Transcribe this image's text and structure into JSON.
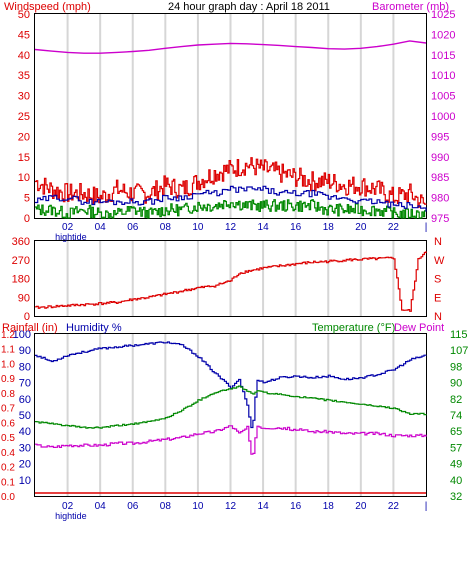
{
  "title": "24 hour graph day : April 18 2011",
  "colors": {
    "wind": "#dd0000",
    "wind_avg": "#0000aa",
    "wind_low": "#008800",
    "barometer": "#cc00cc",
    "direction": "#dd0000",
    "humidity": "#0000aa",
    "temperature": "#008800",
    "dewpoint": "#cc00cc",
    "rainfall": "#dd0000",
    "grid": "#d6d6d6",
    "frame": "#000000"
  },
  "chart_data": [
    {
      "type": "line",
      "id": "wind-baro",
      "left_axis_label": "Windspeed (mph)",
      "right_axis_label": "Barometer (mb)",
      "y_left_ticks": [
        "0",
        "5",
        "10",
        "15",
        "20",
        "25",
        "30",
        "35",
        "40",
        "45",
        "50"
      ],
      "y_right_ticks": [
        "975",
        "980",
        "985",
        "990",
        "995",
        "1000",
        "1005",
        "1010",
        "1015",
        "1020",
        "1025"
      ],
      "ylim_left": [
        0,
        50
      ],
      "ylim_right": [
        975,
        1025
      ],
      "x_ticks": [
        "02",
        "04",
        "06",
        "08",
        "10",
        "12",
        "14",
        "16",
        "18",
        "20",
        "22",
        "|"
      ],
      "x_sublabel": "hightide",
      "hours": [
        0,
        1,
        2,
        3,
        4,
        5,
        6,
        7,
        8,
        9,
        10,
        11,
        12,
        13,
        14,
        15,
        16,
        17,
        18,
        19,
        20,
        21,
        22,
        23,
        24
      ],
      "series": [
        {
          "key": "gust",
          "values": [
            9,
            7,
            6,
            6,
            5,
            7,
            6,
            6,
            8,
            7,
            9,
            11,
            12,
            13,
            12,
            11,
            10,
            9,
            9,
            8,
            8,
            7,
            5,
            6,
            3
          ]
        },
        {
          "key": "avg",
          "values": [
            4,
            5,
            5,
            4,
            4,
            4,
            4,
            4,
            5,
            5,
            6,
            6,
            7,
            7,
            7,
            6,
            6,
            6,
            5,
            5,
            4,
            4,
            3,
            3,
            2
          ]
        },
        {
          "key": "low",
          "values": [
            2,
            2,
            1,
            2,
            1,
            1,
            2,
            1,
            2,
            2,
            3,
            3,
            4,
            3,
            3,
            3,
            3,
            3,
            2,
            2,
            2,
            2,
            1,
            1,
            1
          ]
        },
        {
          "key": "barometer",
          "values": [
            1016.3,
            1015.9,
            1015.6,
            1015.4,
            1015.4,
            1015.6,
            1015.8,
            1016.1,
            1016.6,
            1017.0,
            1017.4,
            1017.6,
            1017.8,
            1017.7,
            1017.5,
            1017.3,
            1017.0,
            1016.8,
            1016.5,
            1016.4,
            1016.6,
            1017.0,
            1017.6,
            1018.4,
            1017.9
          ]
        }
      ]
    },
    {
      "type": "line",
      "id": "direction",
      "y_left_ticks": [
        "0",
        "90",
        "180",
        "270",
        "360"
      ],
      "y_right_ticks": [
        "N",
        "E",
        "S",
        "W",
        "N"
      ],
      "ylim": [
        0,
        360
      ],
      "hours": [
        0,
        1,
        2,
        3,
        4,
        5,
        6,
        7,
        8,
        9,
        10,
        11,
        12,
        12.5,
        13,
        14,
        15,
        16,
        17,
        18,
        19,
        20,
        21,
        22,
        22.5,
        23,
        23.5,
        24
      ],
      "values": [
        40,
        45,
        50,
        55,
        60,
        65,
        80,
        90,
        105,
        120,
        135,
        145,
        170,
        205,
        215,
        230,
        240,
        250,
        258,
        262,
        268,
        272,
        275,
        278,
        30,
        25,
        270,
        315
      ]
    },
    {
      "type": "line",
      "id": "hum-temp",
      "left_axis_label_1": "Rainfall (in)",
      "left_axis_label_2": "Humidity %",
      "right_axis_label_1": "Temperature (°F)",
      "right_axis_label_2": "Dew Point",
      "rain_ticks": [
        "0.0",
        "0.1",
        "0.2",
        "0.4",
        "0.5",
        "0.6",
        "0.7",
        "0.8",
        "0.9",
        "1.0",
        "1.1",
        "1.2"
      ],
      "humidity_ticks": [
        "10",
        "20",
        "30",
        "40",
        "50",
        "60",
        "70",
        "80",
        "90",
        "100"
      ],
      "temp_ticks": [
        "32",
        "40",
        "49",
        "57",
        "65",
        "74",
        "82",
        "90",
        "98",
        "107",
        "115"
      ],
      "ylim_humidity": [
        0,
        100
      ],
      "ylim_temp": [
        32,
        115
      ],
      "x_ticks": [
        "02",
        "04",
        "06",
        "08",
        "10",
        "12",
        "14",
        "16",
        "18",
        "20",
        "22",
        "|"
      ],
      "x_sublabel": "hightide",
      "hours": [
        0,
        1,
        2,
        3,
        4,
        5,
        6,
        7,
        8,
        9,
        10,
        11,
        12,
        12.5,
        13,
        13.3,
        13.6,
        14,
        15,
        16,
        17,
        18,
        19,
        20,
        21,
        22,
        23,
        24
      ],
      "humidity": [
        87,
        83,
        87,
        89,
        91,
        92,
        93,
        94,
        95,
        93,
        86,
        76,
        67,
        72,
        56,
        39,
        72,
        70,
        73,
        74,
        73,
        74,
        72,
        73,
        75,
        78,
        84,
        87
      ],
      "temperature": [
        70,
        69,
        68,
        67,
        67,
        68,
        69,
        70,
        72,
        76,
        81,
        85,
        87,
        88,
        86,
        84,
        86,
        85,
        84,
        83,
        82,
        81,
        80,
        79,
        78,
        77,
        74,
        74
      ],
      "dewpoint": [
        58,
        57,
        58,
        58,
        58,
        59,
        59,
        60,
        61,
        62,
        64,
        65,
        68,
        64,
        67,
        50,
        68,
        67,
        67,
        66,
        65,
        65,
        64,
        64,
        64,
        63,
        63,
        63
      ],
      "rainfall": [
        0,
        0,
        0,
        0,
        0,
        0,
        0,
        0,
        0,
        0,
        0,
        0,
        0,
        0,
        0,
        0,
        0,
        0,
        0,
        0,
        0,
        0,
        0,
        0,
        0,
        0,
        0,
        0
      ]
    }
  ]
}
